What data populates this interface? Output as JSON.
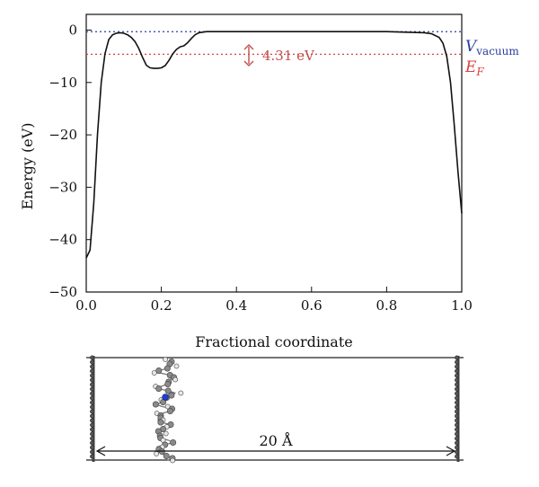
{
  "chart_data": {
    "type": "line",
    "xlabel": "Fractional coordinate",
    "ylabel": "Energy (eV)",
    "xlim": [
      0.0,
      1.0
    ],
    "ylim": [
      -50,
      3
    ],
    "xticks": [
      0.0,
      0.2,
      0.4,
      0.6,
      0.8,
      1.0
    ],
    "xtick_labels": [
      "0.0",
      "0.2",
      "0.4",
      "0.6",
      "0.8",
      "1.0"
    ],
    "yticks": [
      0,
      -10,
      -20,
      -30,
      -40,
      -50
    ],
    "ytick_labels": [
      "0",
      "−10",
      "−20",
      "−30",
      "−40",
      "−50"
    ],
    "grid": false,
    "series": [
      {
        "color": "#111111",
        "x": [
          0.0,
          0.01,
          0.02,
          0.03,
          0.04,
          0.05,
          0.06,
          0.07,
          0.08,
          0.09,
          0.1,
          0.11,
          0.12,
          0.13,
          0.14,
          0.15,
          0.16,
          0.17,
          0.18,
          0.19,
          0.2,
          0.21,
          0.22,
          0.23,
          0.24,
          0.25,
          0.26,
          0.27,
          0.28,
          0.29,
          0.3,
          0.32,
          0.35,
          0.4,
          0.5,
          0.6,
          0.7,
          0.8,
          0.85,
          0.9,
          0.92,
          0.94,
          0.95,
          0.96,
          0.97,
          0.98,
          0.99,
          1.0
        ],
        "y": [
          -43.5,
          -42,
          -33,
          -20,
          -10,
          -4.5,
          -1.8,
          -0.9,
          -0.6,
          -0.5,
          -0.6,
          -0.9,
          -1.4,
          -2.2,
          -3.5,
          -5.2,
          -6.7,
          -7.2,
          -7.3,
          -7.3,
          -7.2,
          -6.8,
          -5.8,
          -4.6,
          -3.7,
          -3.2,
          -3.0,
          -2.4,
          -1.6,
          -0.9,
          -0.5,
          -0.3,
          -0.3,
          -0.3,
          -0.3,
          -0.3,
          -0.3,
          -0.3,
          -0.4,
          -0.5,
          -0.7,
          -1.4,
          -2.5,
          -5,
          -10,
          -18,
          -27,
          -35
        ]
      }
    ],
    "reference_lines": [
      {
        "y": -0.3,
        "color": "#2b3f9e",
        "style": "dotted"
      },
      {
        "y": -4.61,
        "color": "#d9423f",
        "style": "dotted"
      }
    ],
    "annotation": {
      "text": "4.31 eV",
      "x": 0.43,
      "y_from": -0.3,
      "y_to": -4.61,
      "color": "#c0504d"
    },
    "legend_vacuum": {
      "main": "V",
      "sub": "vacuum",
      "color": "#2b3f9e"
    },
    "legend_fermi": {
      "main": "E",
      "sub": "F",
      "color": "#d9423f"
    }
  },
  "structure": {
    "dimension_label": "20 Å"
  }
}
